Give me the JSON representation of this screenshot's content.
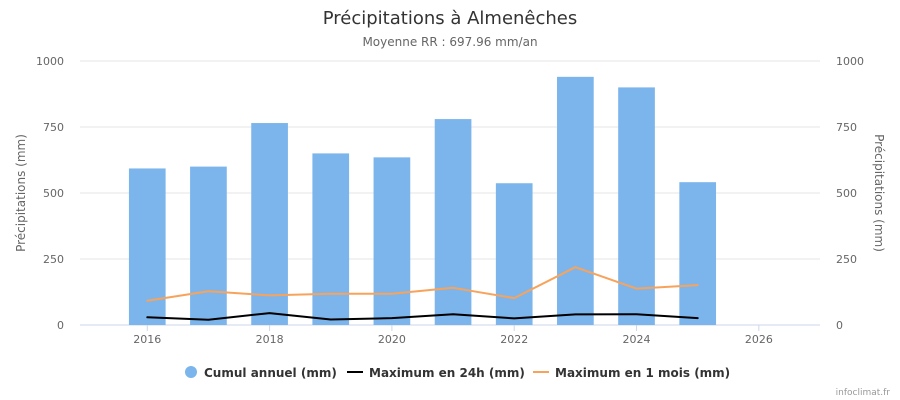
{
  "chart_data": {
    "type": "bar",
    "title": "Précipitations à Almenêches",
    "subtitle": "Moyenne RR : 697.96 mm/an",
    "ylabel_left": "Précipitations (mm)",
    "ylabel_right": "Précipitations (mm)",
    "x_ticks": [
      "2016",
      "2018",
      "2020",
      "2022",
      "2024",
      "2026"
    ],
    "x_range": [
      2014.9,
      2027
    ],
    "y_ticks": [
      "0",
      "250",
      "500",
      "750",
      "1000"
    ],
    "ylim": [
      0,
      1000
    ],
    "grid": true,
    "legend_position": "bottom",
    "x": [
      2016,
      2017,
      2018,
      2019,
      2020,
      2021,
      2022,
      2023,
      2024,
      2025
    ],
    "series": [
      {
        "name": "Cumul annuel (mm)",
        "type": "bar",
        "color": "#7cb5ec",
        "values": [
          593,
          600,
          765,
          650,
          635,
          780,
          537,
          940,
          900,
          541
        ]
      },
      {
        "name": "Maximum en 24h (mm)",
        "type": "line",
        "color": "#000000",
        "values": [
          29,
          20,
          45,
          21,
          26,
          41,
          25,
          40,
          41,
          26
        ]
      },
      {
        "name": "Maximum en 1 mois (mm)",
        "type": "line",
        "color": "#f7a35c",
        "values": [
          92,
          128,
          112,
          118,
          118,
          141,
          102,
          219,
          138,
          151
        ]
      }
    ]
  },
  "credit": "infoclimat.fr"
}
